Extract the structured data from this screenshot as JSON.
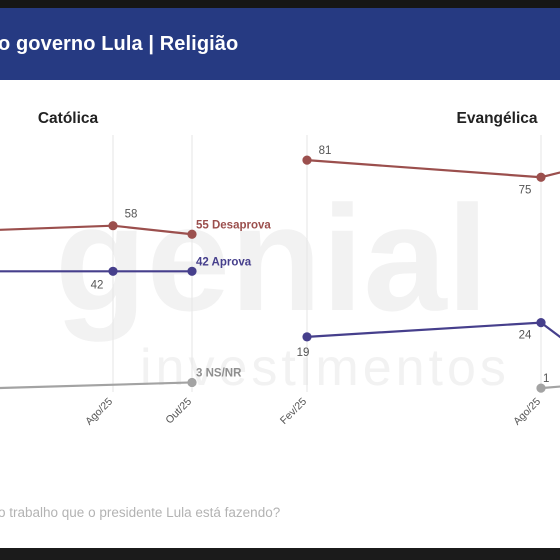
{
  "header": {
    "title": "o governo Lula | Religião"
  },
  "footnote": "o trabalho que o presidente Lula está fazendo?",
  "watermark": {
    "line1": "genial",
    "line2": "investimentos"
  },
  "colors": {
    "header_bg": "#263a82",
    "desaprova": "#9b4f4d",
    "aprova": "#463f8c",
    "nsnr": "#a3a3a3",
    "grid": "#e6e6e6"
  },
  "chart_data": [
    {
      "type": "line",
      "title": "Católica",
      "categories": [
        "Ago/25",
        "Out/25"
      ],
      "series": [
        {
          "name": "Desaprova",
          "values": [
            58,
            55
          ],
          "end_label": "55 Desaprova",
          "point_labels": [
            "58",
            ""
          ]
        },
        {
          "name": "Aprova",
          "values": [
            42,
            42
          ],
          "end_label": "42 Aprova",
          "point_labels": [
            "42",
            ""
          ]
        },
        {
          "name": "NS/NR",
          "values": [
            null,
            3
          ],
          "end_label": "3 NS/NR",
          "point_labels": [
            "",
            ""
          ]
        }
      ]
    },
    {
      "type": "line",
      "title": "Evangélica",
      "categories": [
        "Fev/25",
        "Ago/25"
      ],
      "series": [
        {
          "name": "Desaprova",
          "values": [
            81,
            75
          ],
          "point_labels": [
            "81",
            "75"
          ]
        },
        {
          "name": "Aprova",
          "values": [
            19,
            24
          ],
          "point_labels": [
            "19",
            "24"
          ]
        },
        {
          "name": "NS/NR",
          "values": [
            null,
            1
          ],
          "point_labels": [
            "",
            "1"
          ]
        }
      ]
    }
  ]
}
